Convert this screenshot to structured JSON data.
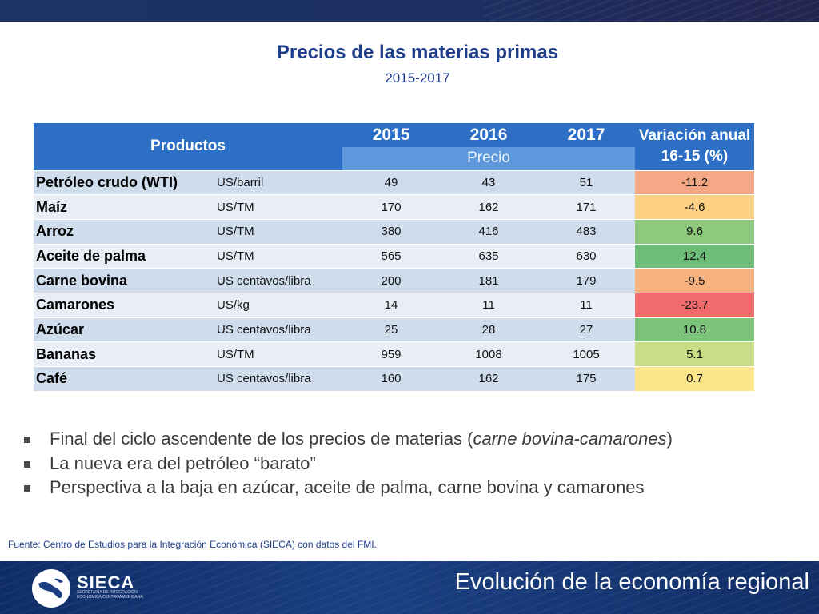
{
  "header": {
    "title": "Precios de las materias primas",
    "subtitle": "2015-2017"
  },
  "table": {
    "col_products": "Productos",
    "years": [
      "2015",
      "2016",
      "2017"
    ],
    "price_label": "Precio",
    "variation_label_line1": "Variación anual",
    "variation_label_line2": "16-15 (%)",
    "rows": [
      {
        "product": "Petróleo crudo (WTI)",
        "unit": "US/barril",
        "v2015": "49",
        "v2016": "43",
        "v2017": "51",
        "variation": "-11.2",
        "color": "#f4a886"
      },
      {
        "product": "Maíz",
        "unit": "US/TM",
        "v2015": "170",
        "v2016": "162",
        "v2017": "171",
        "variation": "-4.6",
        "color": "#fdd183"
      },
      {
        "product": "Arroz",
        "unit": "US/TM",
        "v2015": "380",
        "v2016": "416",
        "v2017": "483",
        "variation": "9.6",
        "color": "#8ec97e"
      },
      {
        "product": "Aceite de palma",
        "unit": "US/TM",
        "v2015": "565",
        "v2016": "635",
        "v2017": "630",
        "variation": "12.4",
        "color": "#6dbd79"
      },
      {
        "product": "Carne bovina",
        "unit": "US centavos/libra",
        "v2015": "200",
        "v2016": "181",
        "v2017": "179",
        "variation": "-9.5",
        "color": "#f8b27f"
      },
      {
        "product": "Camarones",
        "unit": "US/kg",
        "v2015": "14",
        "v2016": "11",
        "v2017": "11",
        "variation": "-23.7",
        "color": "#f06b6b"
      },
      {
        "product": "Azúcar",
        "unit": "US centavos/libra",
        "v2015": "25",
        "v2016": "28",
        "v2017": "27",
        "variation": "10.8",
        "color": "#7cc47c"
      },
      {
        "product": "Bananas",
        "unit": "US/TM",
        "v2015": "959",
        "v2016": "1008",
        "v2017": "1005",
        "variation": "5.1",
        "color": "#c9dc86"
      },
      {
        "product": "Café",
        "unit": "US centavos/libra",
        "v2015": "160",
        "v2016": "162",
        "v2017": "175",
        "variation": "0.7",
        "color": "#fde58a"
      }
    ]
  },
  "bullets": [
    {
      "pre": "Final del ciclo ascendente de los precios de materias (",
      "em": "carne bovina-camarones",
      "post": ")"
    },
    {
      "pre": "La nueva era del petróleo “barato”",
      "em": "",
      "post": ""
    },
    {
      "pre": "Perspectiva a la baja en azúcar, aceite de palma, carne bovina y camarones",
      "em": "",
      "post": ""
    }
  ],
  "source": "Fuente: Centro de Estudios para la Integración Económica (SIECA) con datos del FMI.",
  "footer": {
    "logo_name": "SIECA",
    "logo_subtitle": "SECRETARÍA DE INTEGRACIÓN ECONÓMICA CENTROAMERICANA",
    "title": "Evolución de la economía regional"
  }
}
